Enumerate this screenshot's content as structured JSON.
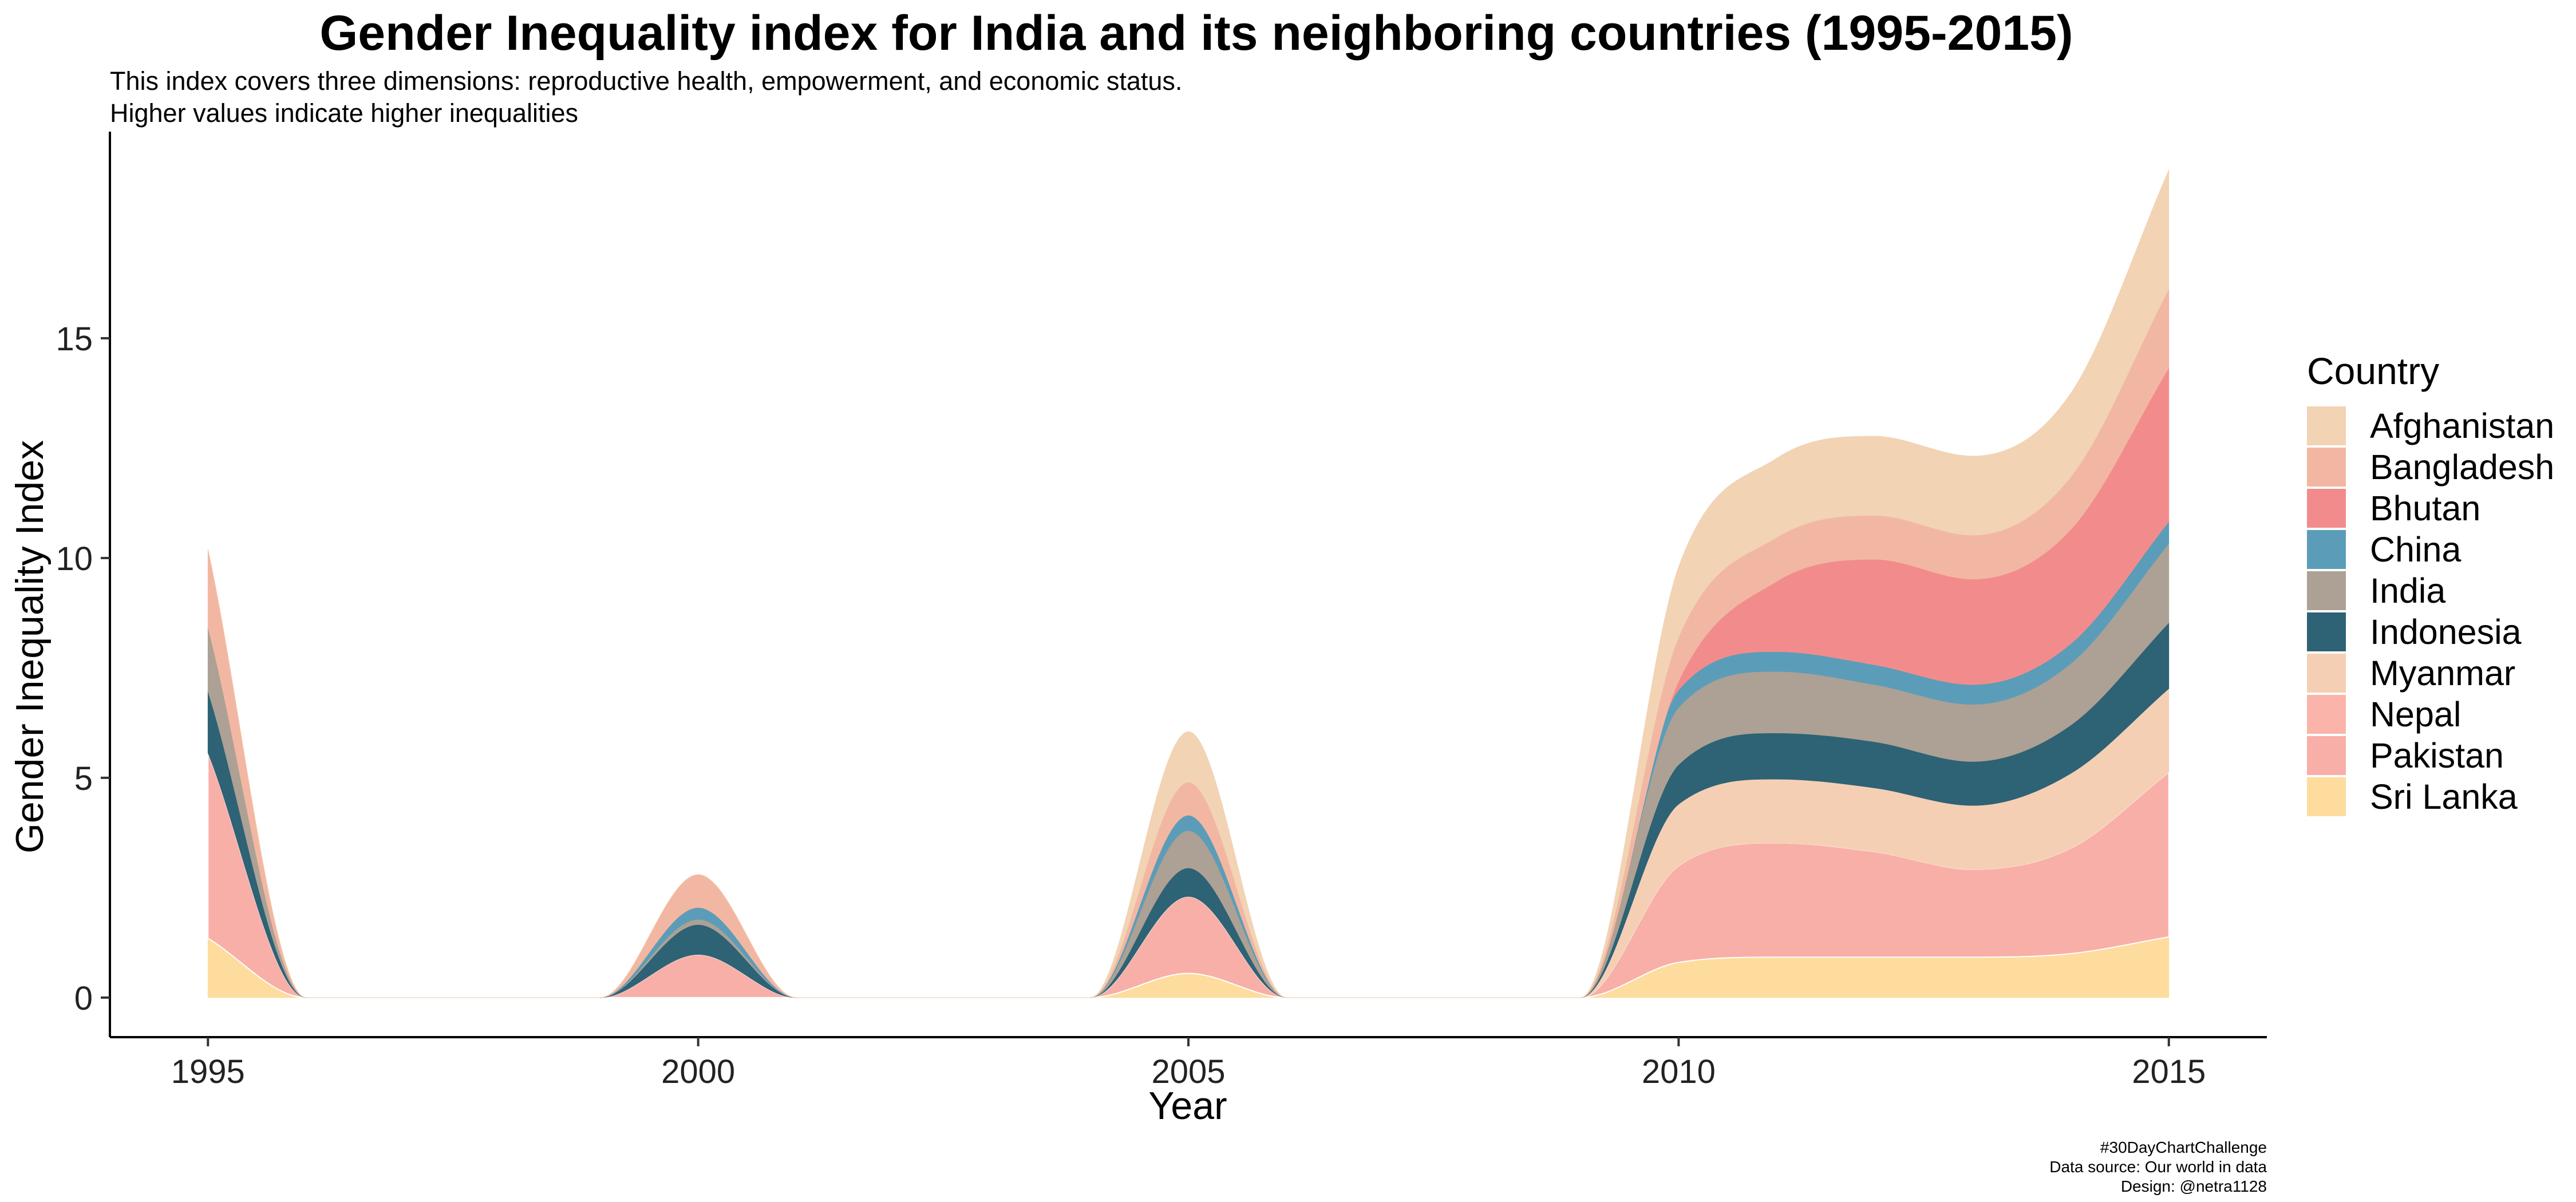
{
  "title": "Gender Inequality index for India and its neighboring countries (1995-2015)",
  "subtitle_line1": "This index covers three dimensions: reproductive health, empowerment, and economic status.",
  "subtitle_line2": "Higher values indicate higher inequalities",
  "caption": {
    "line1": "#30DayChartChallenge",
    "line2": "Data source: Our world in data",
    "line3": "Design: @netra1128"
  },
  "legend": {
    "title": "Country"
  },
  "chart_data": {
    "type": "area",
    "stacked": true,
    "smoothed": true,
    "title": "Gender Inequality index for India and its neighboring countries (1995-2015)",
    "xlabel": "Year",
    "ylabel": "Gender Inequality Index",
    "xlim": [
      1994,
      2016
    ],
    "ylim": [
      -0.9,
      19.7
    ],
    "xticks": [
      1995,
      2000,
      2005,
      2010,
      2015
    ],
    "yticks": [
      0,
      5,
      10,
      15
    ],
    "legend_position": "right",
    "x": [
      1995,
      1996,
      1997,
      1998,
      1999,
      2000,
      2001,
      2002,
      2003,
      2004,
      2005,
      2006,
      2007,
      2008,
      2009,
      2010,
      2011,
      2012,
      2013,
      2014,
      2015
    ],
    "series": [
      {
        "name": "Sri Lanka",
        "color": "#FDDC9D",
        "values": [
          1.35,
          0,
          0,
          0,
          0,
          0,
          0,
          0,
          0,
          0,
          0.55,
          0,
          0,
          0,
          0,
          0.8,
          0.92,
          0.92,
          0.92,
          1.0,
          1.38
        ]
      },
      {
        "name": "Pakistan",
        "color": "#F8AFA8",
        "values": [
          4.22,
          0,
          0,
          0,
          0,
          0.98,
          0,
          0,
          0,
          0,
          1.75,
          0,
          0,
          0,
          0,
          2.2,
          2.6,
          2.4,
          2.0,
          2.4,
          3.75
        ]
      },
      {
        "name": "Nepal",
        "color": "#FBB4AA",
        "values": [
          0,
          0,
          0,
          0,
          0,
          0,
          0,
          0,
          0,
          0,
          0,
          0,
          0,
          0,
          0,
          0,
          0,
          0,
          0,
          0,
          0
        ]
      },
      {
        "name": "Myanmar",
        "color": "#F5CFB4",
        "values": [
          0,
          0,
          0,
          0,
          0,
          0,
          0,
          0,
          0,
          0,
          0,
          0,
          0,
          0,
          0,
          1.4,
          1.45,
          1.45,
          1.45,
          1.7,
          1.9
        ]
      },
      {
        "name": "Indonesia",
        "color": "#2E6275",
        "values": [
          1.4,
          0,
          0,
          0,
          0,
          0.68,
          0,
          0,
          0,
          0,
          0.65,
          0,
          0,
          0,
          0,
          0.9,
          1.05,
          1.05,
          1.0,
          1.1,
          1.5
        ]
      },
      {
        "name": "India",
        "color": "#ACA194",
        "values": [
          1.45,
          0,
          0,
          0,
          0,
          0.12,
          0,
          0,
          0,
          0,
          0.85,
          0,
          0,
          0,
          0,
          1.3,
          1.4,
          1.3,
          1.3,
          1.4,
          1.8
        ]
      },
      {
        "name": "China",
        "color": "#5B9DB9",
        "values": [
          0,
          0,
          0,
          0,
          0,
          0.27,
          0,
          0,
          0,
          0,
          0.35,
          0,
          0,
          0,
          0,
          0.4,
          0.45,
          0.45,
          0.45,
          0.45,
          0.5
        ]
      },
      {
        "name": "Bhutan",
        "color": "#F28C8C",
        "values": [
          0,
          0,
          0,
          0,
          0,
          0,
          0,
          0,
          0,
          0,
          0,
          0,
          0,
          0,
          0,
          0.2,
          1.6,
          2.4,
          2.4,
          2.6,
          3.5
        ]
      },
      {
        "name": "Bangladesh",
        "color": "#F2B7A2",
        "values": [
          1.78,
          0,
          0,
          0,
          0,
          0.75,
          0,
          0,
          0,
          0,
          0.75,
          0,
          0,
          0,
          0,
          1.0,
          1.0,
          1.0,
          1.0,
          1.2,
          1.8
        ]
      },
      {
        "name": "Afghanistan",
        "color": "#F2D3B4",
        "values": [
          0,
          0,
          0,
          0,
          0,
          0,
          0,
          0,
          0,
          0,
          1.15,
          0,
          0,
          0,
          0,
          1.6,
          1.8,
          1.8,
          1.8,
          1.9,
          2.7
        ]
      }
    ]
  }
}
